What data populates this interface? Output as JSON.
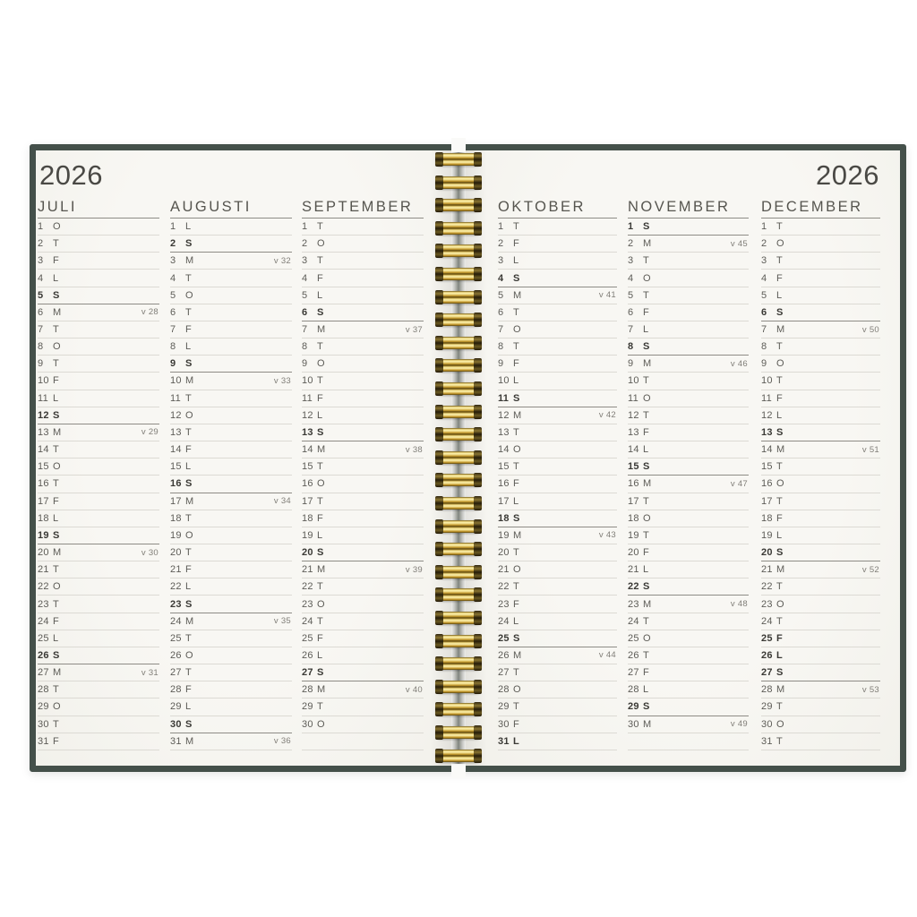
{
  "year": "2026",
  "colors": {
    "cover_green": "#44504a",
    "page_cream": "#f6f5f1",
    "coil_gold": "#c79b2e",
    "text_normal": "#5d5c57",
    "text_bold": "#3a3935",
    "rule_light": "#dcdad4",
    "rule_dark": "#8e8c86"
  },
  "binding": {
    "type": "wire-o-coil",
    "loop_count": 27
  },
  "months": [
    {
      "name": "JULI",
      "days": [
        {
          "d": 1,
          "w": "O"
        },
        {
          "d": 2,
          "w": "T"
        },
        {
          "d": 3,
          "w": "F"
        },
        {
          "d": 4,
          "w": "L"
        },
        {
          "d": 5,
          "w": "S",
          "sunday": true
        },
        {
          "d": 6,
          "w": "M",
          "week": "v 28"
        },
        {
          "d": 7,
          "w": "T"
        },
        {
          "d": 8,
          "w": "O"
        },
        {
          "d": 9,
          "w": "T"
        },
        {
          "d": 10,
          "w": "F"
        },
        {
          "d": 11,
          "w": "L"
        },
        {
          "d": 12,
          "w": "S",
          "sunday": true
        },
        {
          "d": 13,
          "w": "M",
          "week": "v 29"
        },
        {
          "d": 14,
          "w": "T"
        },
        {
          "d": 15,
          "w": "O"
        },
        {
          "d": 16,
          "w": "T"
        },
        {
          "d": 17,
          "w": "F"
        },
        {
          "d": 18,
          "w": "L"
        },
        {
          "d": 19,
          "w": "S",
          "sunday": true
        },
        {
          "d": 20,
          "w": "M",
          "week": "v 30"
        },
        {
          "d": 21,
          "w": "T"
        },
        {
          "d": 22,
          "w": "O"
        },
        {
          "d": 23,
          "w": "T"
        },
        {
          "d": 24,
          "w": "F"
        },
        {
          "d": 25,
          "w": "L"
        },
        {
          "d": 26,
          "w": "S",
          "sunday": true
        },
        {
          "d": 27,
          "w": "M",
          "week": "v 31"
        },
        {
          "d": 28,
          "w": "T"
        },
        {
          "d": 29,
          "w": "O"
        },
        {
          "d": 30,
          "w": "T"
        },
        {
          "d": 31,
          "w": "F"
        }
      ]
    },
    {
      "name": "AUGUSTI",
      "days": [
        {
          "d": 1,
          "w": "L"
        },
        {
          "d": 2,
          "w": "S",
          "sunday": true
        },
        {
          "d": 3,
          "w": "M",
          "week": "v 32"
        },
        {
          "d": 4,
          "w": "T"
        },
        {
          "d": 5,
          "w": "O"
        },
        {
          "d": 6,
          "w": "T"
        },
        {
          "d": 7,
          "w": "F"
        },
        {
          "d": 8,
          "w": "L"
        },
        {
          "d": 9,
          "w": "S",
          "sunday": true
        },
        {
          "d": 10,
          "w": "M",
          "week": "v 33"
        },
        {
          "d": 11,
          "w": "T"
        },
        {
          "d": 12,
          "w": "O"
        },
        {
          "d": 13,
          "w": "T"
        },
        {
          "d": 14,
          "w": "F"
        },
        {
          "d": 15,
          "w": "L"
        },
        {
          "d": 16,
          "w": "S",
          "sunday": true
        },
        {
          "d": 17,
          "w": "M",
          "week": "v 34"
        },
        {
          "d": 18,
          "w": "T"
        },
        {
          "d": 19,
          "w": "O"
        },
        {
          "d": 20,
          "w": "T"
        },
        {
          "d": 21,
          "w": "F"
        },
        {
          "d": 22,
          "w": "L"
        },
        {
          "d": 23,
          "w": "S",
          "sunday": true
        },
        {
          "d": 24,
          "w": "M",
          "week": "v 35"
        },
        {
          "d": 25,
          "w": "T"
        },
        {
          "d": 26,
          "w": "O"
        },
        {
          "d": 27,
          "w": "T"
        },
        {
          "d": 28,
          "w": "F"
        },
        {
          "d": 29,
          "w": "L"
        },
        {
          "d": 30,
          "w": "S",
          "sunday": true
        },
        {
          "d": 31,
          "w": "M",
          "week": "v 36"
        }
      ]
    },
    {
      "name": "SEPTEMBER",
      "days": [
        {
          "d": 1,
          "w": "T"
        },
        {
          "d": 2,
          "w": "O"
        },
        {
          "d": 3,
          "w": "T"
        },
        {
          "d": 4,
          "w": "F"
        },
        {
          "d": 5,
          "w": "L"
        },
        {
          "d": 6,
          "w": "S",
          "sunday": true
        },
        {
          "d": 7,
          "w": "M",
          "week": "v 37"
        },
        {
          "d": 8,
          "w": "T"
        },
        {
          "d": 9,
          "w": "O"
        },
        {
          "d": 10,
          "w": "T"
        },
        {
          "d": 11,
          "w": "F"
        },
        {
          "d": 12,
          "w": "L"
        },
        {
          "d": 13,
          "w": "S",
          "sunday": true
        },
        {
          "d": 14,
          "w": "M",
          "week": "v 38"
        },
        {
          "d": 15,
          "w": "T"
        },
        {
          "d": 16,
          "w": "O"
        },
        {
          "d": 17,
          "w": "T"
        },
        {
          "d": 18,
          "w": "F"
        },
        {
          "d": 19,
          "w": "L"
        },
        {
          "d": 20,
          "w": "S",
          "sunday": true
        },
        {
          "d": 21,
          "w": "M",
          "week": "v 39"
        },
        {
          "d": 22,
          "w": "T"
        },
        {
          "d": 23,
          "w": "O"
        },
        {
          "d": 24,
          "w": "T"
        },
        {
          "d": 25,
          "w": "F"
        },
        {
          "d": 26,
          "w": "L"
        },
        {
          "d": 27,
          "w": "S",
          "sunday": true
        },
        {
          "d": 28,
          "w": "M",
          "week": "v 40"
        },
        {
          "d": 29,
          "w": "T"
        },
        {
          "d": 30,
          "w": "O"
        }
      ]
    },
    {
      "name": "OKTOBER",
      "days": [
        {
          "d": 1,
          "w": "T"
        },
        {
          "d": 2,
          "w": "F"
        },
        {
          "d": 3,
          "w": "L"
        },
        {
          "d": 4,
          "w": "S",
          "sunday": true
        },
        {
          "d": 5,
          "w": "M",
          "week": "v 41"
        },
        {
          "d": 6,
          "w": "T"
        },
        {
          "d": 7,
          "w": "O"
        },
        {
          "d": 8,
          "w": "T"
        },
        {
          "d": 9,
          "w": "F"
        },
        {
          "d": 10,
          "w": "L"
        },
        {
          "d": 11,
          "w": "S",
          "sunday": true
        },
        {
          "d": 12,
          "w": "M",
          "week": "v 42"
        },
        {
          "d": 13,
          "w": "T"
        },
        {
          "d": 14,
          "w": "O"
        },
        {
          "d": 15,
          "w": "T"
        },
        {
          "d": 16,
          "w": "F"
        },
        {
          "d": 17,
          "w": "L"
        },
        {
          "d": 18,
          "w": "S",
          "sunday": true
        },
        {
          "d": 19,
          "w": "M",
          "week": "v 43"
        },
        {
          "d": 20,
          "w": "T"
        },
        {
          "d": 21,
          "w": "O"
        },
        {
          "d": 22,
          "w": "T"
        },
        {
          "d": 23,
          "w": "F"
        },
        {
          "d": 24,
          "w": "L"
        },
        {
          "d": 25,
          "w": "S",
          "sunday": true
        },
        {
          "d": 26,
          "w": "M",
          "week": "v 44"
        },
        {
          "d": 27,
          "w": "T"
        },
        {
          "d": 28,
          "w": "O"
        },
        {
          "d": 29,
          "w": "T"
        },
        {
          "d": 30,
          "w": "F"
        },
        {
          "d": 31,
          "w": "L",
          "holiday": true
        }
      ]
    },
    {
      "name": "NOVEMBER",
      "days": [
        {
          "d": 1,
          "w": "S",
          "sunday": true
        },
        {
          "d": 2,
          "w": "M",
          "week": "v 45"
        },
        {
          "d": 3,
          "w": "T"
        },
        {
          "d": 4,
          "w": "O"
        },
        {
          "d": 5,
          "w": "T"
        },
        {
          "d": 6,
          "w": "F"
        },
        {
          "d": 7,
          "w": "L"
        },
        {
          "d": 8,
          "w": "S",
          "sunday": true
        },
        {
          "d": 9,
          "w": "M",
          "week": "v 46"
        },
        {
          "d": 10,
          "w": "T"
        },
        {
          "d": 11,
          "w": "O"
        },
        {
          "d": 12,
          "w": "T"
        },
        {
          "d": 13,
          "w": "F"
        },
        {
          "d": 14,
          "w": "L"
        },
        {
          "d": 15,
          "w": "S",
          "sunday": true
        },
        {
          "d": 16,
          "w": "M",
          "week": "v 47"
        },
        {
          "d": 17,
          "w": "T"
        },
        {
          "d": 18,
          "w": "O"
        },
        {
          "d": 19,
          "w": "T"
        },
        {
          "d": 20,
          "w": "F"
        },
        {
          "d": 21,
          "w": "L"
        },
        {
          "d": 22,
          "w": "S",
          "sunday": true
        },
        {
          "d": 23,
          "w": "M",
          "week": "v 48"
        },
        {
          "d": 24,
          "w": "T"
        },
        {
          "d": 25,
          "w": "O"
        },
        {
          "d": 26,
          "w": "T"
        },
        {
          "d": 27,
          "w": "F"
        },
        {
          "d": 28,
          "w": "L"
        },
        {
          "d": 29,
          "w": "S",
          "sunday": true
        },
        {
          "d": 30,
          "w": "M",
          "week": "v 49"
        }
      ]
    },
    {
      "name": "DECEMBER",
      "days": [
        {
          "d": 1,
          "w": "T"
        },
        {
          "d": 2,
          "w": "O"
        },
        {
          "d": 3,
          "w": "T"
        },
        {
          "d": 4,
          "w": "F"
        },
        {
          "d": 5,
          "w": "L"
        },
        {
          "d": 6,
          "w": "S",
          "sunday": true
        },
        {
          "d": 7,
          "w": "M",
          "week": "v 50"
        },
        {
          "d": 8,
          "w": "T"
        },
        {
          "d": 9,
          "w": "O"
        },
        {
          "d": 10,
          "w": "T"
        },
        {
          "d": 11,
          "w": "F"
        },
        {
          "d": 12,
          "w": "L"
        },
        {
          "d": 13,
          "w": "S",
          "sunday": true
        },
        {
          "d": 14,
          "w": "M",
          "week": "v 51"
        },
        {
          "d": 15,
          "w": "T"
        },
        {
          "d": 16,
          "w": "O"
        },
        {
          "d": 17,
          "w": "T"
        },
        {
          "d": 18,
          "w": "F"
        },
        {
          "d": 19,
          "w": "L"
        },
        {
          "d": 20,
          "w": "S",
          "sunday": true
        },
        {
          "d": 21,
          "w": "M",
          "week": "v 52"
        },
        {
          "d": 22,
          "w": "T"
        },
        {
          "d": 23,
          "w": "O"
        },
        {
          "d": 24,
          "w": "T"
        },
        {
          "d": 25,
          "w": "F",
          "holiday": true
        },
        {
          "d": 26,
          "w": "L",
          "holiday": true
        },
        {
          "d": 27,
          "w": "S",
          "sunday": true
        },
        {
          "d": 28,
          "w": "M",
          "week": "v 53"
        },
        {
          "d": 29,
          "w": "T"
        },
        {
          "d": 30,
          "w": "O"
        },
        {
          "d": 31,
          "w": "T"
        }
      ]
    }
  ]
}
